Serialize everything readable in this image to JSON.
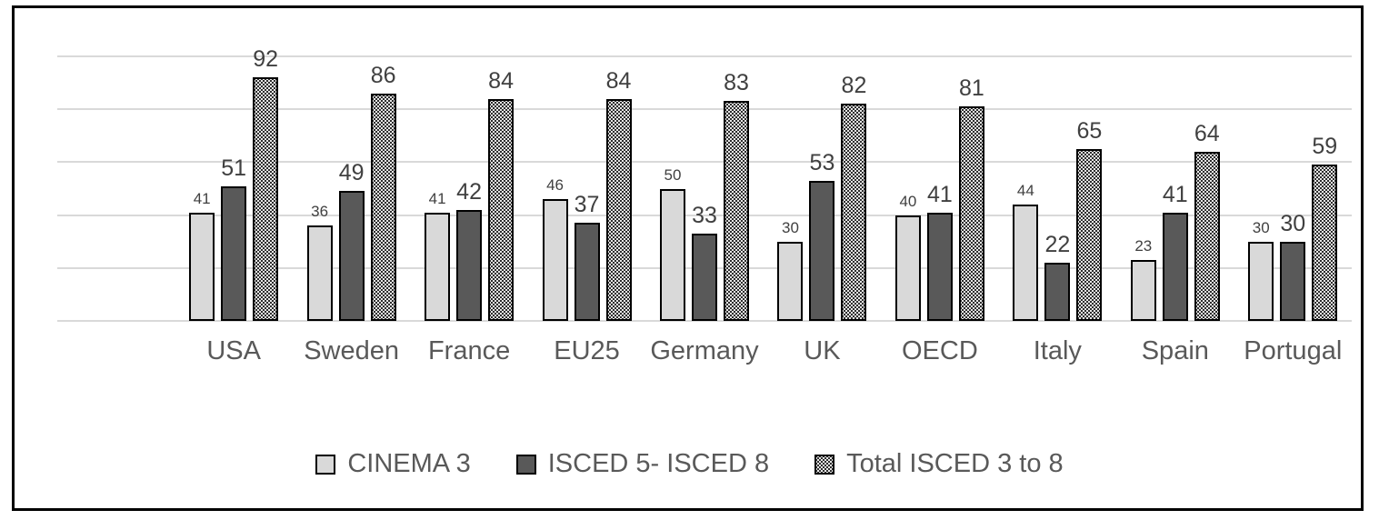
{
  "chart_data": {
    "type": "bar",
    "categories": [
      "USA",
      "Sweden",
      "France",
      "EU25",
      "Germany",
      "UK",
      "OECD",
      "Italy",
      "Spain",
      "Portugal"
    ],
    "series": [
      {
        "name": "CINEMA 3",
        "style": "light",
        "values": [
          41,
          36,
          41,
          46,
          50,
          30,
          40,
          44,
          23,
          30
        ]
      },
      {
        "name": "ISCED 5- ISCED 8",
        "style": "dark",
        "values": [
          51,
          49,
          42,
          37,
          33,
          53,
          41,
          22,
          41,
          30
        ]
      },
      {
        "name": "Total ISCED 3 to 8",
        "style": "dotted",
        "values": [
          92,
          86,
          84,
          84,
          83,
          82,
          81,
          65,
          64,
          59
        ]
      }
    ],
    "title": "",
    "xlabel": "",
    "ylabel": "",
    "ylim": [
      0,
      100
    ],
    "gridline_values": [
      0,
      20,
      40,
      60,
      80,
      100
    ],
    "grid": true,
    "data_labels": true,
    "legend_position": "bottom",
    "leading_empty_category_slot": 1,
    "colors": {
      "series_light_fill": "#d9d9d9",
      "series_dark_fill": "#595959",
      "series_dotted_fill": "#ffffff",
      "series_dotted_dot": "#222222",
      "bar_border": "#000000",
      "gridline": "#d9d9d9",
      "data_label_text": "#404040",
      "axis_text": "#595959",
      "frame_border": "#000000",
      "background": "#ffffff"
    }
  }
}
